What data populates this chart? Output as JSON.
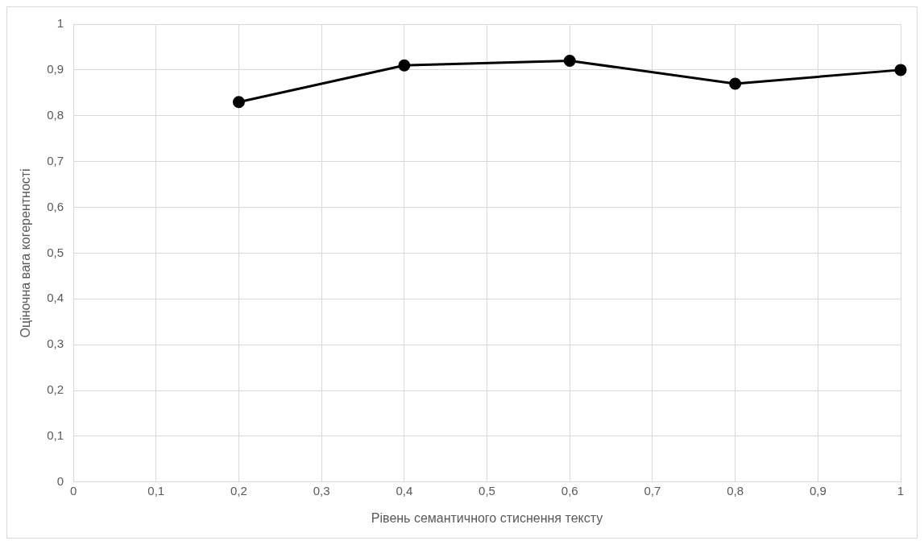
{
  "chart_data": {
    "type": "line",
    "xlabel": "Рівень семантичного стиснення тексту",
    "ylabel": "Оціночна вага когерентності",
    "x": [
      0.2,
      0.4,
      0.6,
      0.8,
      1
    ],
    "series": [
      {
        "color": "#000000",
        "values": [
          0.83,
          0.91,
          0.92,
          0.87,
          0.9
        ]
      }
    ],
    "xlim": [
      0,
      1
    ],
    "ylim": [
      0,
      1
    ],
    "xticks": [
      0,
      {
        "value": 0.1,
        "label": "0,1"
      },
      {
        "value": 0.2,
        "label": "0,2"
      },
      {
        "value": 0.3,
        "label": "0,3"
      },
      {
        "value": 0.4,
        "label": "0,4"
      },
      {
        "value": 0.5,
        "label": "0,5"
      },
      {
        "value": 0.6,
        "label": "0,6"
      },
      {
        "value": 0.7,
        "label": "0,7"
      },
      {
        "value": 0.8,
        "label": "0,8"
      },
      {
        "value": 0.9,
        "label": "0,9"
      },
      1
    ],
    "yticks": [
      0,
      {
        "value": 0.1,
        "label": "0,1"
      },
      {
        "value": 0.2,
        "label": "0,2"
      },
      {
        "value": 0.3,
        "label": "0,3"
      },
      {
        "value": 0.4,
        "label": "0,4"
      },
      {
        "value": 0.5,
        "label": "0,5"
      },
      {
        "value": 0.6,
        "label": "0,6"
      },
      {
        "value": 0.7,
        "label": "0,7"
      },
      {
        "value": 0.8,
        "label": "0,8"
      },
      {
        "value": 0.9,
        "label": "0,9"
      },
      1
    ],
    "grid": true,
    "legend": false,
    "marker": "circle",
    "line_style": "solid"
  }
}
